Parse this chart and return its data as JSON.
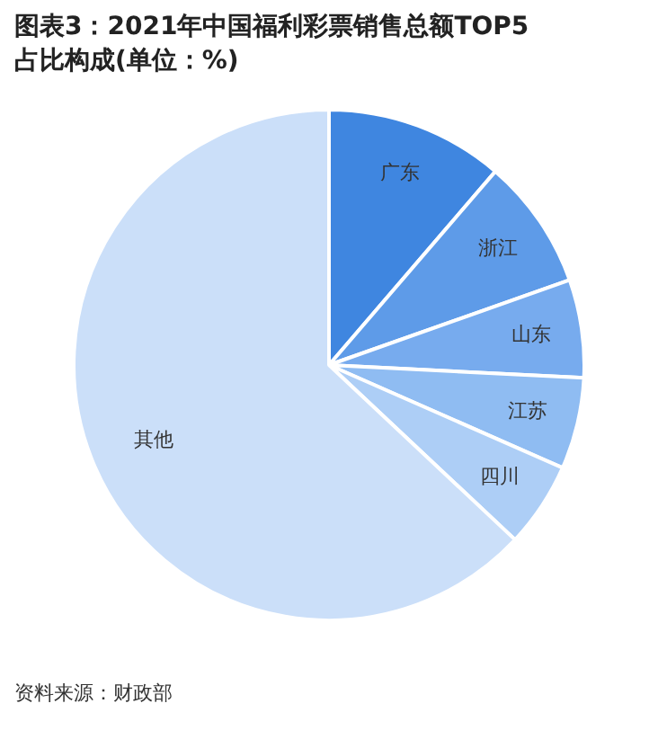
{
  "chart_data": {
    "type": "pie",
    "title": "图表3：2021年中国福利彩票销售总额TOP5占比构成(单位：%)",
    "categories": [
      "广东",
      "浙江",
      "山东",
      "江苏",
      "四川",
      "其他"
    ],
    "values": [
      11.3,
      8.3,
      6.2,
      5.8,
      5.4,
      63.0
    ],
    "colors": [
      "#3f86e0",
      "#5e9be8",
      "#77abee",
      "#8fbcf2",
      "#adcef6",
      "#cbdff9"
    ],
    "legend": false,
    "annotations": [
      "资料来源：财政部"
    ]
  }
}
